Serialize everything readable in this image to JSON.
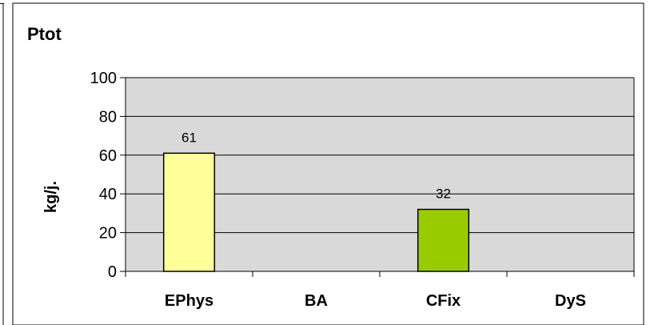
{
  "chart_data": {
    "type": "bar",
    "title": "Ptot",
    "xlabel": "",
    "ylabel": "kg/j.",
    "categories": [
      "EPhys",
      "BA",
      "CFix",
      "DyS"
    ],
    "values": [
      61,
      null,
      32,
      null
    ],
    "data_labels": [
      "61",
      "",
      "32",
      ""
    ],
    "bar_colors": [
      "#ffff99",
      null,
      "#99cc00",
      null
    ],
    "ylim": [
      0,
      100
    ],
    "yticks": [
      0,
      20,
      40,
      60,
      80,
      100
    ],
    "grid": true,
    "plot_background": "#d9d9d9",
    "legend": "none"
  }
}
